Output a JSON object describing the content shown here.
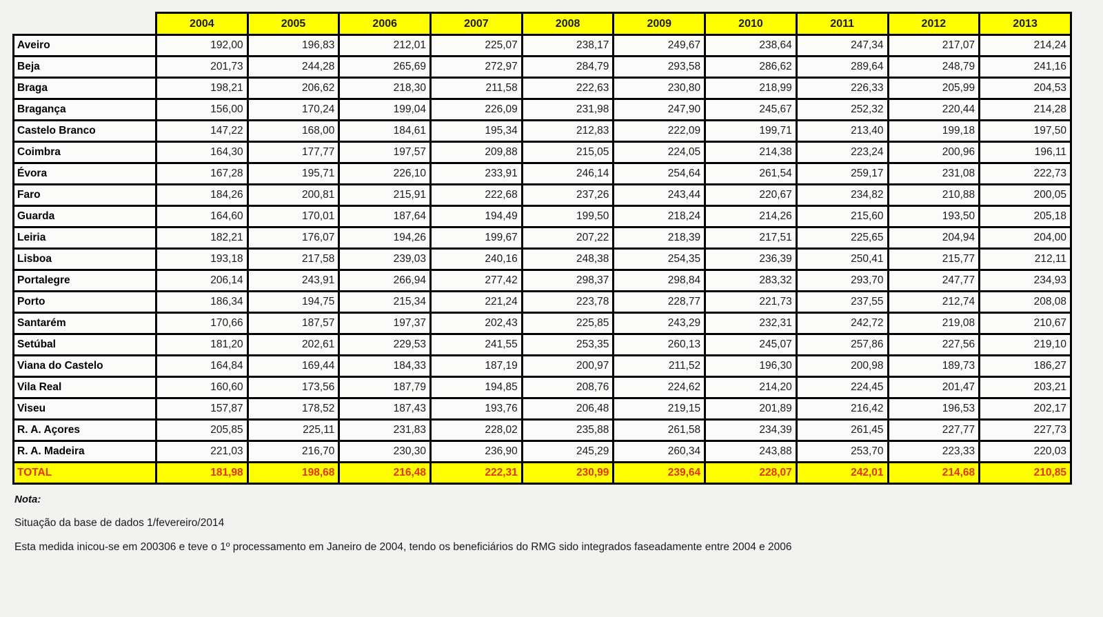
{
  "page": {
    "background": "#f2f2f0"
  },
  "table": {
    "colors": {
      "header_bg": "#ffff00",
      "total_text": "#e83000",
      "cell_bg": "#fbfbf9"
    },
    "years": [
      "2004",
      "2005",
      "2006",
      "2007",
      "2008",
      "2009",
      "2010",
      "2011",
      "2012",
      "2013"
    ],
    "rows": [
      {
        "name": "Aveiro",
        "values": [
          "192,00",
          "196,83",
          "212,01",
          "225,07",
          "238,17",
          "249,67",
          "238,64",
          "247,34",
          "217,07",
          "214,24"
        ]
      },
      {
        "name": "Beja",
        "values": [
          "201,73",
          "244,28",
          "265,69",
          "272,97",
          "284,79",
          "293,58",
          "286,62",
          "289,64",
          "248,79",
          "241,16"
        ]
      },
      {
        "name": "Braga",
        "values": [
          "198,21",
          "206,62",
          "218,30",
          "211,58",
          "222,63",
          "230,80",
          "218,99",
          "226,33",
          "205,99",
          "204,53"
        ]
      },
      {
        "name": "Bragança",
        "values": [
          "156,00",
          "170,24",
          "199,04",
          "226,09",
          "231,98",
          "247,90",
          "245,67",
          "252,32",
          "220,44",
          "214,28"
        ]
      },
      {
        "name": "Castelo Branco",
        "values": [
          "147,22",
          "168,00",
          "184,61",
          "195,34",
          "212,83",
          "222,09",
          "199,71",
          "213,40",
          "199,18",
          "197,50"
        ]
      },
      {
        "name": "Coimbra",
        "values": [
          "164,30",
          "177,77",
          "197,57",
          "209,88",
          "215,05",
          "224,05",
          "214,38",
          "223,24",
          "200,96",
          "196,11"
        ]
      },
      {
        "name": "Évora",
        "values": [
          "167,28",
          "195,71",
          "226,10",
          "233,91",
          "246,14",
          "254,64",
          "261,54",
          "259,17",
          "231,08",
          "222,73"
        ]
      },
      {
        "name": "Faro",
        "values": [
          "184,26",
          "200,81",
          "215,91",
          "222,68",
          "237,26",
          "243,44",
          "220,67",
          "234,82",
          "210,88",
          "200,05"
        ]
      },
      {
        "name": "Guarda",
        "values": [
          "164,60",
          "170,01",
          "187,64",
          "194,49",
          "199,50",
          "218,24",
          "214,26",
          "215,60",
          "193,50",
          "205,18"
        ]
      },
      {
        "name": "Leiria",
        "values": [
          "182,21",
          "176,07",
          "194,26",
          "199,67",
          "207,22",
          "218,39",
          "217,51",
          "225,65",
          "204,94",
          "204,00"
        ]
      },
      {
        "name": "Lisboa",
        "values": [
          "193,18",
          "217,58",
          "239,03",
          "240,16",
          "248,38",
          "254,35",
          "236,39",
          "250,41",
          "215,77",
          "212,11"
        ]
      },
      {
        "name": "Portalegre",
        "values": [
          "206,14",
          "243,91",
          "266,94",
          "277,42",
          "298,37",
          "298,84",
          "283,32",
          "293,70",
          "247,77",
          "234,93"
        ]
      },
      {
        "name": "Porto",
        "values": [
          "186,34",
          "194,75",
          "215,34",
          "221,24",
          "223,78",
          "228,77",
          "221,73",
          "237,55",
          "212,74",
          "208,08"
        ]
      },
      {
        "name": "Santarém",
        "values": [
          "170,66",
          "187,57",
          "197,37",
          "202,43",
          "225,85",
          "243,29",
          "232,31",
          "242,72",
          "219,08",
          "210,67"
        ]
      },
      {
        "name": "Setúbal",
        "values": [
          "181,20",
          "202,61",
          "229,53",
          "241,55",
          "253,35",
          "260,13",
          "245,07",
          "257,86",
          "227,56",
          "219,10"
        ]
      },
      {
        "name": "Viana do Castelo",
        "values": [
          "164,84",
          "169,44",
          "184,33",
          "187,19",
          "200,97",
          "211,52",
          "196,30",
          "200,98",
          "189,73",
          "186,27"
        ]
      },
      {
        "name": "Vila Real",
        "values": [
          "160,60",
          "173,56",
          "187,79",
          "194,85",
          "208,76",
          "224,62",
          "214,20",
          "224,45",
          "201,47",
          "203,21"
        ]
      },
      {
        "name": "Viseu",
        "values": [
          "157,87",
          "178,52",
          "187,43",
          "193,76",
          "206,48",
          "219,15",
          "201,89",
          "216,42",
          "196,53",
          "202,17"
        ]
      },
      {
        "name": "R. A. Açores",
        "values": [
          "205,85",
          "225,11",
          "231,83",
          "228,02",
          "235,88",
          "261,58",
          "234,39",
          "261,45",
          "227,77",
          "227,73"
        ]
      },
      {
        "name": "R. A. Madeira",
        "values": [
          "221,03",
          "216,70",
          "230,30",
          "236,90",
          "245,29",
          "260,34",
          "243,88",
          "253,70",
          "223,33",
          "220,03"
        ]
      }
    ],
    "total": {
      "label": "TOTAL",
      "values": [
        "181,98",
        "198,68",
        "216,48",
        "222,31",
        "230,99",
        "239,64",
        "228,07",
        "242,01",
        "214,68",
        "210,85"
      ]
    }
  },
  "notes": {
    "heading": "Nota:",
    "lines": [
      "Situação da base de dados 1/fevereiro/2014",
      "Esta medida inicou-se em 200306 e teve o 1º processamento em Janeiro de 2004, tendo os beneficiários do RMG sido integrados faseadamente entre 2004 e 2006"
    ]
  }
}
